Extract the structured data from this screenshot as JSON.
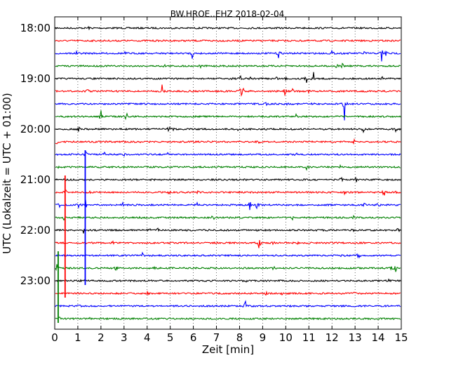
{
  "chart_data": {
    "type": "line",
    "title": "BW.HROE..EHZ 2018-02-04",
    "xlabel": "Zeit  [min]",
    "ylabel": "UTC (Lokalzeit = UTC + 01:00)",
    "xlim": [
      0,
      15
    ],
    "x_ticks": [
      "0",
      "1",
      "2",
      "3",
      "4",
      "5",
      "6",
      "7",
      "8",
      "9",
      "10",
      "11",
      "12",
      "13",
      "14",
      "15"
    ],
    "y_ticks": [
      {
        "label": "18:00",
        "trace": 0
      },
      {
        "label": "19:00",
        "trace": 4
      },
      {
        "label": "20:00",
        "trace": 8
      },
      {
        "label": "21:00",
        "trace": 12
      },
      {
        "label": "22:00",
        "trace": 16
      },
      {
        "label": "23:00",
        "trace": 20
      }
    ],
    "grid": "vertical dotted lines at every minute",
    "colors": [
      "#000000",
      "#ff0000",
      "#0000ff",
      "#008000"
    ],
    "series": [
      {
        "start": "18:00",
        "color": "#000000",
        "events": [
          [
            1.45,
            0.3
          ]
        ]
      },
      {
        "start": "18:15",
        "color": "#ff0000",
        "events": [
          [
            7.05,
            0.15
          ]
        ]
      },
      {
        "start": "18:30",
        "color": "#0000ff",
        "events": [
          [
            0.95,
            0.25
          ],
          [
            3.05,
            0.2
          ],
          [
            4.8,
            0.25
          ],
          [
            5.95,
            0.9
          ],
          [
            9.7,
            1.2
          ],
          [
            12.0,
            0.5
          ],
          [
            13.4,
            0.6
          ],
          [
            14.15,
            1.8
          ],
          [
            14.35,
            0.8
          ]
        ]
      },
      {
        "start": "18:45",
        "color": "#008000",
        "events": [
          [
            4.75,
            0.25
          ],
          [
            6.3,
            0.3
          ],
          [
            12.2,
            0.4
          ],
          [
            12.45,
            0.5
          ]
        ]
      },
      {
        "start": "19:00",
        "color": "#000000",
        "events": [
          [
            7.7,
            0.4
          ],
          [
            8.05,
            0.7
          ],
          [
            8.15,
            0.6
          ],
          [
            8.45,
            0.3
          ],
          [
            9.6,
            0.4
          ],
          [
            10.0,
            0.3
          ],
          [
            10.9,
            0.7
          ],
          [
            11.2,
            1.2
          ],
          [
            14.2,
            0.4
          ]
        ]
      },
      {
        "start": "19:15",
        "color": "#ff0000",
        "events": [
          [
            1.45,
            0.9
          ],
          [
            4.65,
            1.1
          ],
          [
            8.05,
            1.5
          ],
          [
            8.15,
            1.0
          ],
          [
            9.95,
            0.8
          ],
          [
            10.3,
            0.4
          ],
          [
            11.0,
            0.4
          ]
        ]
      },
      {
        "start": "19:30",
        "color": "#0000ff",
        "events": [
          [
            9.15,
            0.3
          ],
          [
            10.0,
            0.3
          ],
          [
            11.2,
            0.3
          ],
          [
            12.55,
            3.8
          ]
        ]
      },
      {
        "start": "19:45",
        "color": "#008000",
        "events": [
          [
            2.0,
            1.4
          ],
          [
            3.1,
            0.9
          ],
          [
            10.45,
            0.3
          ]
        ]
      },
      {
        "start": "20:00",
        "color": "#000000",
        "events": [
          [
            1.05,
            0.8
          ],
          [
            4.95,
            0.8
          ],
          [
            5.1,
            0.7
          ],
          [
            7.95,
            0.3
          ],
          [
            13.35,
            0.8
          ],
          [
            14.75,
            0.5
          ]
        ]
      },
      {
        "start": "20:15",
        "color": "#ff0000",
        "events": [
          [
            0.05,
            1.5
          ],
          [
            3.65,
            0.2
          ],
          [
            8.85,
            0.3
          ],
          [
            12.9,
            0.7
          ],
          [
            13.0,
            0.5
          ]
        ]
      },
      {
        "start": "20:30",
        "color": "#0000ff",
        "events": [
          [
            1.35,
            0.8
          ],
          [
            2.15,
            0.4
          ],
          [
            3.0,
            0.3
          ],
          [
            4.9,
            1.0
          ],
          [
            10.45,
            0.4
          ]
        ]
      },
      {
        "start": "20:45",
        "color": "#008000",
        "events": [
          [
            0.2,
            0.4
          ],
          [
            1.85,
            0.2
          ],
          [
            7.05,
            0.2
          ],
          [
            10.9,
            0.4
          ],
          [
            12.35,
            0.3
          ]
        ]
      },
      {
        "start": "21:00",
        "color": "#000000",
        "events": [
          [
            0.45,
            0.4
          ],
          [
            12.4,
            0.5
          ],
          [
            13.05,
            0.7
          ]
        ]
      },
      {
        "start": "21:15",
        "color": "#ff0000",
        "events": [
          [
            0.45,
            0.8
          ],
          [
            1.5,
            0.3
          ],
          [
            4.95,
            0.3
          ],
          [
            6.2,
            0.3
          ],
          [
            12.55,
            0.4
          ],
          [
            14.25,
            0.8
          ],
          [
            14.7,
            0.4
          ]
        ]
      },
      {
        "start": "21:30",
        "color": "#0000ff",
        "events": [
          [
            0.2,
            0.4
          ],
          [
            1.05,
            0.6
          ],
          [
            1.35,
            1.2
          ],
          [
            2.95,
            0.3
          ],
          [
            6.15,
            0.6
          ],
          [
            8.45,
            1.0
          ],
          [
            8.75,
            0.9
          ],
          [
            13.4,
            0.3
          ],
          [
            14.0,
            0.6
          ]
        ]
      },
      {
        "start": "21:45",
        "color": "#008000",
        "events": [
          [
            0.4,
            0.3
          ],
          [
            3.7,
            0.8
          ],
          [
            6.85,
            0.6
          ],
          [
            10.3,
            0.4
          ],
          [
            12.95,
            0.3
          ],
          [
            13.5,
            0.3
          ]
        ]
      },
      {
        "start": "22:00",
        "color": "#000000",
        "events": [
          [
            1.25,
            0.5
          ],
          [
            4.1,
            0.4
          ],
          [
            4.45,
            0.6
          ],
          [
            6.7,
            0.2
          ],
          [
            12.9,
            0.3
          ],
          [
            14.85,
            0.4
          ]
        ]
      },
      {
        "start": "22:15",
        "color": "#ff0000",
        "events": [
          [
            2.5,
            0.3
          ],
          [
            8.85,
            1.4
          ],
          [
            9.45,
            0.4
          ],
          [
            10.5,
            0.2
          ]
        ]
      },
      {
        "start": "22:30",
        "color": "#0000ff",
        "events": [
          [
            3.15,
            0.5
          ],
          [
            3.8,
            0.5
          ],
          [
            12.45,
            0.3
          ],
          [
            13.15,
            0.9
          ]
        ]
      },
      {
        "start": "22:45",
        "color": "#008000",
        "events": [
          [
            0.1,
            1.0
          ],
          [
            2.65,
            0.8
          ],
          [
            4.3,
            0.5
          ],
          [
            9.45,
            0.7
          ],
          [
            14.55,
            0.6
          ],
          [
            14.75,
            0.6
          ]
        ]
      },
      {
        "start": "23:00",
        "color": "#000000",
        "events": [
          [
            1.15,
            0.3
          ],
          [
            8.3,
            0.3
          ],
          [
            14.45,
            0.3
          ]
        ]
      },
      {
        "start": "23:15",
        "color": "#ff0000",
        "events": [
          [
            4.0,
            0.3
          ],
          [
            9.15,
            0.3
          ],
          [
            9.85,
            0.3
          ],
          [
            12.45,
            0.3
          ],
          [
            13.0,
            0.3
          ]
        ]
      },
      {
        "start": "23:30",
        "color": "#0000ff",
        "events": [
          [
            1.05,
            0.3
          ],
          [
            8.25,
            1.0
          ],
          [
            14.2,
            0.2
          ]
        ]
      },
      {
        "start": "23:45",
        "color": "#008000",
        "events": [
          [
            0.2,
            0.3
          ],
          [
            1.55,
            0.2
          ]
        ]
      }
    ],
    "long_spikes": [
      {
        "x": 0.45,
        "start": "21:00",
        "end": "23:15",
        "color": "#ff0000"
      },
      {
        "x": 1.32,
        "start": "20:30",
        "end": "23:00",
        "color": "#0000ff"
      },
      {
        "x": 0.15,
        "start": "22:30",
        "end": "23:45",
        "color": "#008000"
      }
    ]
  }
}
